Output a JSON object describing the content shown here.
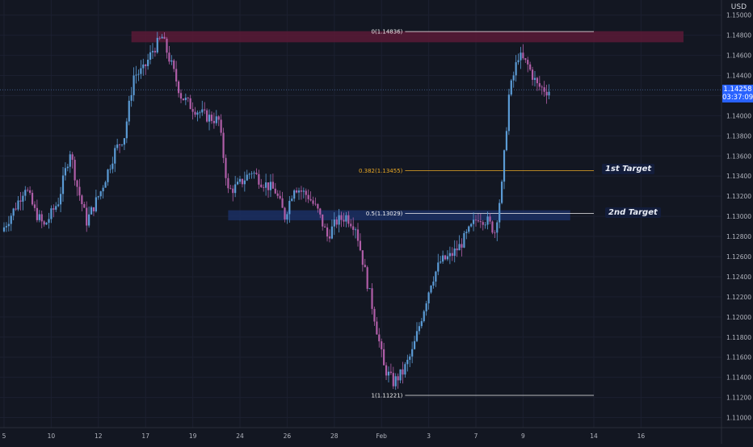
{
  "currency": "USD",
  "current_price": "1.14258",
  "countdown": "03:37:09",
  "colors": {
    "background": "#131722",
    "up_candle": "#5b9bd5",
    "down_candle": "#b05ea8",
    "resistance_zone": "#5a1a36",
    "support_zone": "#1b2f63",
    "fib_line": "#f0f0f0",
    "fib_target_line": "#e9a825",
    "price_tag": "#2962ff"
  },
  "chart_data": {
    "type": "candlestick",
    "y_axis": {
      "ticks": [
        "1.15000",
        "1.14800",
        "1.14600",
        "1.14400",
        "1.14200",
        "1.14000",
        "1.13800",
        "1.13600",
        "1.13400",
        "1.13200",
        "1.13000",
        "1.12800",
        "1.12600",
        "1.12400",
        "1.12200",
        "1.12000",
        "1.11800",
        "1.11600",
        "1.11400",
        "1.11200",
        "1.11000"
      ],
      "range": [
        1.109,
        1.1515
      ]
    },
    "x_axis": {
      "ticks": [
        {
          "label": "5",
          "i": 0
        },
        {
          "label": "10",
          "i": 20
        },
        {
          "label": "12",
          "i": 40
        },
        {
          "label": "17",
          "i": 60
        },
        {
          "label": "19",
          "i": 80
        },
        {
          "label": "24",
          "i": 100
        },
        {
          "label": "26",
          "i": 120
        },
        {
          "label": "28",
          "i": 140
        },
        {
          "label": "Feb",
          "i": 160
        },
        {
          "label": "3",
          "i": 180
        },
        {
          "label": "7",
          "i": 200
        },
        {
          "label": "9",
          "i": 220
        },
        {
          "label": "14",
          "i": 250
        },
        {
          "label": "16",
          "i": 270
        }
      ]
    },
    "fib_levels": [
      {
        "label": "0(1.14836)",
        "value": 1.14836,
        "color": "#f0f0f0"
      },
      {
        "label": "0.382(1.13455)",
        "value": 1.13455,
        "color": "#e9a825"
      },
      {
        "label": "0.5(1.13029)",
        "value": 1.13029,
        "color": "#f0f0f0"
      },
      {
        "label": "1(1.11221)",
        "value": 1.11221,
        "color": "#f0f0f0"
      }
    ],
    "zones": [
      {
        "name": "resistance",
        "y_low": 1.1473,
        "y_high": 1.1484,
        "start_i": 54,
        "end_i": 288
      },
      {
        "name": "support",
        "y_low": 1.1296,
        "y_high": 1.1306,
        "start_i": 95,
        "end_i": 240
      }
    ],
    "annotations": [
      {
        "text": "1st Target",
        "value": 1.13455
      },
      {
        "text": "2nd Target",
        "value": 1.13029
      }
    ],
    "current_price_value": 1.14258,
    "waypoints": [
      [
        0,
        1.1285
      ],
      [
        6,
        1.131
      ],
      [
        10,
        1.133
      ],
      [
        14,
        1.1305
      ],
      [
        18,
        1.129
      ],
      [
        24,
        1.1315
      ],
      [
        29,
        1.1365
      ],
      [
        32,
        1.133
      ],
      [
        36,
        1.1295
      ],
      [
        42,
        1.1325
      ],
      [
        48,
        1.1365
      ],
      [
        52,
        1.138
      ],
      [
        56,
        1.144
      ],
      [
        60,
        1.1445
      ],
      [
        64,
        1.1465
      ],
      [
        68,
        1.1478
      ],
      [
        72,
        1.145
      ],
      [
        76,
        1.142
      ],
      [
        80,
        1.141
      ],
      [
        86,
        1.14
      ],
      [
        92,
        1.1395
      ],
      [
        96,
        1.1325
      ],
      [
        100,
        1.133
      ],
      [
        106,
        1.1345
      ],
      [
        110,
        1.1335
      ],
      [
        116,
        1.1325
      ],
      [
        120,
        1.13
      ],
      [
        124,
        1.133
      ],
      [
        130,
        1.132
      ],
      [
        134,
        1.1305
      ],
      [
        138,
        1.128
      ],
      [
        142,
        1.1295
      ],
      [
        146,
        1.13
      ],
      [
        150,
        1.129
      ],
      [
        154,
        1.1245
      ],
      [
        158,
        1.12
      ],
      [
        162,
        1.115
      ],
      [
        166,
        1.1135
      ],
      [
        170,
        1.1145
      ],
      [
        174,
        1.1165
      ],
      [
        178,
        1.12
      ],
      [
        182,
        1.1235
      ],
      [
        186,
        1.1255
      ],
      [
        190,
        1.126
      ],
      [
        194,
        1.127
      ],
      [
        198,
        1.1285
      ],
      [
        202,
        1.13
      ],
      [
        206,
        1.1295
      ],
      [
        209,
        1.1285
      ],
      [
        212,
        1.133
      ],
      [
        215,
        1.142
      ],
      [
        219,
        1.146
      ],
      [
        223,
        1.145
      ],
      [
        227,
        1.143
      ],
      [
        231,
        1.1425
      ]
    ]
  }
}
